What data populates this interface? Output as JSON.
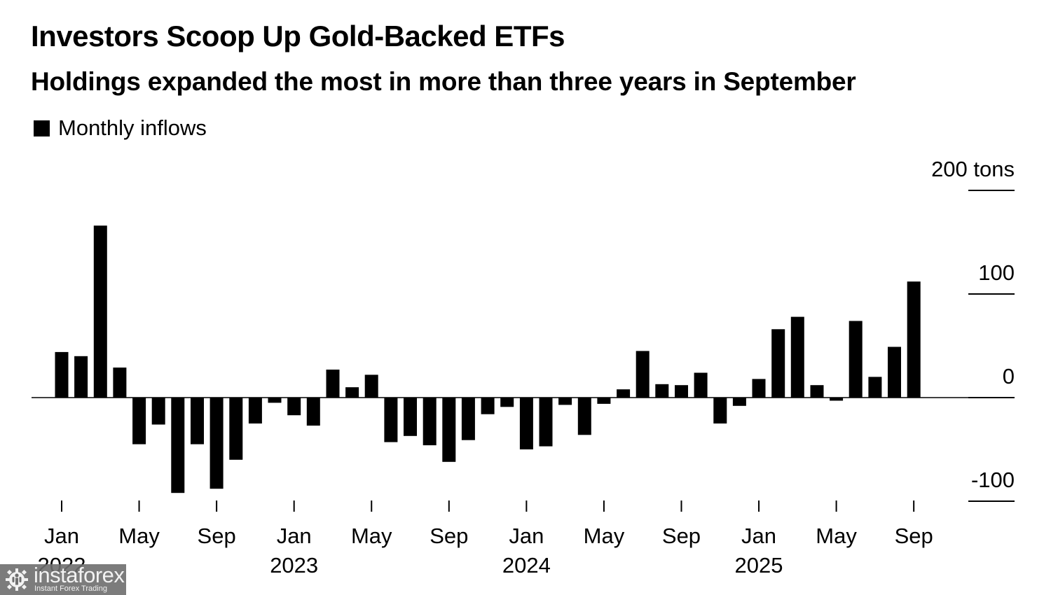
{
  "chart_data": {
    "type": "bar",
    "title": "Investors Scoop Up Gold-Backed ETFs",
    "subtitle": "Holdings expanded the most in more than three years in September",
    "legend": [
      {
        "name": "Monthly inflows",
        "color": "#000000"
      }
    ],
    "legend_position": "top-left",
    "xlabel": "",
    "ylabel": "tons",
    "ylim": [
      -100,
      200
    ],
    "y_ticks": [
      {
        "value": 200,
        "label": "200 tons"
      },
      {
        "value": 100,
        "label": "100"
      },
      {
        "value": 0,
        "label": "0"
      },
      {
        "value": -100,
        "label": "-100"
      }
    ],
    "y_axis_position": "right",
    "x_ticks": [
      {
        "month_index": 0,
        "label": "Jan",
        "year": "2022"
      },
      {
        "month_index": 4,
        "label": "May",
        "year": ""
      },
      {
        "month_index": 8,
        "label": "Sep",
        "year": ""
      },
      {
        "month_index": 12,
        "label": "Jan",
        "year": "2023"
      },
      {
        "month_index": 16,
        "label": "May",
        "year": ""
      },
      {
        "month_index": 20,
        "label": "Sep",
        "year": ""
      },
      {
        "month_index": 24,
        "label": "Jan",
        "year": "2024"
      },
      {
        "month_index": 28,
        "label": "May",
        "year": ""
      },
      {
        "month_index": 32,
        "label": "Sep",
        "year": ""
      },
      {
        "month_index": 36,
        "label": "Jan",
        "year": "2025"
      },
      {
        "month_index": 40,
        "label": "May",
        "year": ""
      },
      {
        "month_index": 44,
        "label": "Sep",
        "year": ""
      }
    ],
    "categories": [
      "2022-01",
      "2022-02",
      "2022-03",
      "2022-04",
      "2022-05",
      "2022-06",
      "2022-07",
      "2022-08",
      "2022-09",
      "2022-10",
      "2022-11",
      "2022-12",
      "2023-01",
      "2023-02",
      "2023-03",
      "2023-04",
      "2023-05",
      "2023-06",
      "2023-07",
      "2023-08",
      "2023-09",
      "2023-10",
      "2023-11",
      "2023-12",
      "2024-01",
      "2024-02",
      "2024-03",
      "2024-04",
      "2024-05",
      "2024-06",
      "2024-07",
      "2024-08",
      "2024-09",
      "2024-10",
      "2024-11",
      "2024-12",
      "2025-01",
      "2025-02",
      "2025-03",
      "2025-04",
      "2025-05",
      "2025-06",
      "2025-07",
      "2025-08",
      "2025-09"
    ],
    "series": [
      {
        "name": "Monthly inflows",
        "values": [
          44,
          40,
          166,
          29,
          -45,
          -26,
          -92,
          -45,
          -88,
          -60,
          -25,
          -5,
          -17,
          -27,
          27,
          10,
          22,
          -43,
          -37,
          -46,
          -62,
          -41,
          -16,
          -9,
          -50,
          -47,
          -7,
          -36,
          -6,
          8,
          45,
          13,
          12,
          24,
          -25,
          -8,
          18,
          66,
          78,
          12,
          -3,
          74,
          20,
          49,
          112
        ]
      }
    ],
    "grid": false,
    "colors": {
      "bar": "#000000",
      "axis": "#000000",
      "background": "#ffffff"
    }
  },
  "watermark": {
    "brand": "instaforex",
    "tagline": "Instant Forex Trading"
  }
}
